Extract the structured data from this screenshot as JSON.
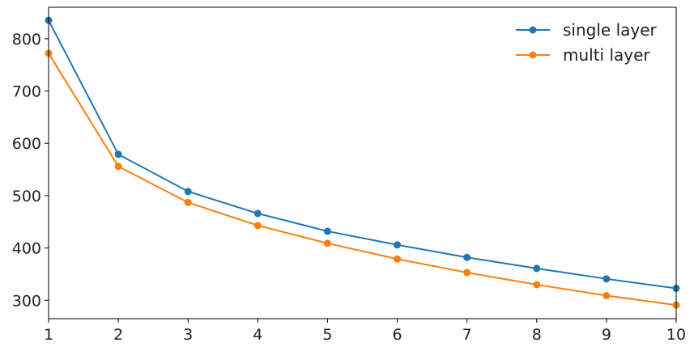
{
  "chart_data": {
    "type": "line",
    "x": [
      1,
      2,
      3,
      4,
      5,
      6,
      7,
      8,
      9,
      10
    ],
    "series": [
      {
        "name": "single layer",
        "color": "#1f77b4",
        "values": [
          835,
          579,
          508,
          466,
          432,
          406,
          382,
          361,
          341,
          323
        ]
      },
      {
        "name": "multi layer",
        "color": "#ff7f0e",
        "values": [
          772,
          556,
          487,
          443,
          409,
          379,
          353,
          330,
          309,
          291
        ]
      }
    ],
    "xlim": [
      1,
      10
    ],
    "ylim": [
      265,
      860
    ],
    "x_ticks": [
      1,
      2,
      3,
      4,
      5,
      6,
      7,
      8,
      9,
      10
    ],
    "y_ticks": [
      300,
      400,
      500,
      600,
      700,
      800
    ],
    "title": "",
    "xlabel": "",
    "ylabel": "",
    "grid": false,
    "legend_position": "top-right",
    "marker": "circle"
  }
}
